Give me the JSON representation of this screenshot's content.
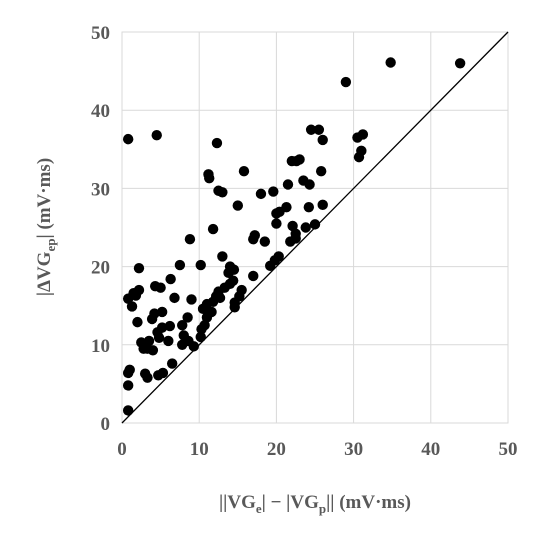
{
  "chart_data": {
    "type": "scatter",
    "title": "",
    "xlabel": {
      "pre": "||VG",
      "sub1": "e",
      "mid": "| − |VG",
      "sub2": "p",
      "post": "|| (mV·ms)"
    },
    "ylabel": {
      "pre": "|ΔVG",
      "sub": "ep",
      "post": "| (mV·ms)"
    },
    "xlim": [
      0,
      50
    ],
    "ylim": [
      0,
      50
    ],
    "x_ticks": [
      "0",
      "10",
      "20",
      "30",
      "40",
      "50"
    ],
    "y_ticks": [
      "0",
      "10",
      "20",
      "30",
      "40",
      "50"
    ],
    "grid": true,
    "reference_line": "y = x",
    "marker_color": "#000000",
    "points": [
      [
        0.8,
        36.3
      ],
      [
        4.5,
        36.8
      ],
      [
        12.3,
        35.8
      ],
      [
        15.8,
        32.2
      ],
      [
        11.2,
        31.8
      ],
      [
        11.3,
        31.3
      ],
      [
        13.0,
        29.5
      ],
      [
        12.5,
        29.7
      ],
      [
        15.0,
        27.8
      ],
      [
        8.8,
        23.5
      ],
      [
        11.8,
        24.8
      ],
      [
        13.0,
        21.3
      ],
      [
        10.2,
        20.2
      ],
      [
        7.5,
        20.2
      ],
      [
        2.2,
        19.8
      ],
      [
        6.3,
        18.4
      ],
      [
        4.3,
        17.5
      ],
      [
        5.0,
        17.3
      ],
      [
        2.2,
        17.0
      ],
      [
        1.5,
        16.6
      ],
      [
        0.8,
        15.9
      ],
      [
        1.8,
        16.3
      ],
      [
        9.0,
        15.8
      ],
      [
        6.8,
        16.0
      ],
      [
        1.3,
        14.9
      ],
      [
        4.2,
        14.0
      ],
      [
        5.2,
        14.2
      ],
      [
        3.9,
        13.3
      ],
      [
        2.0,
        12.9
      ],
      [
        8.5,
        13.5
      ],
      [
        7.8,
        12.5
      ],
      [
        5.2,
        12.2
      ],
      [
        6.2,
        12.4
      ],
      [
        4.6,
        11.6
      ],
      [
        3.5,
        10.5
      ],
      [
        2.5,
        10.3
      ],
      [
        6.0,
        10.5
      ],
      [
        4.8,
        10.9
      ],
      [
        8.0,
        11.2
      ],
      [
        8.6,
        10.5
      ],
      [
        3.3,
        9.5
      ],
      [
        2.8,
        9.5
      ],
      [
        4.0,
        9.3
      ],
      [
        9.3,
        9.8
      ],
      [
        7.8,
        10.0
      ],
      [
        6.5,
        7.6
      ],
      [
        5.3,
        6.4
      ],
      [
        4.7,
        6.1
      ],
      [
        3.3,
        5.8
      ],
      [
        3.0,
        6.3
      ],
      [
        1.0,
        6.8
      ],
      [
        0.8,
        6.4
      ],
      [
        0.8,
        4.8
      ],
      [
        0.8,
        1.6
      ],
      [
        10.2,
        11.0
      ],
      [
        10.3,
        12.0
      ],
      [
        10.7,
        12.5
      ],
      [
        11.0,
        13.5
      ],
      [
        11.6,
        14.2
      ],
      [
        11.0,
        15.2
      ],
      [
        11.8,
        15.5
      ],
      [
        12.2,
        16.2
      ],
      [
        12.5,
        16.8
      ],
      [
        13.3,
        17.3
      ],
      [
        14.0,
        17.8
      ],
      [
        14.4,
        18.2
      ],
      [
        13.8,
        19.2
      ],
      [
        14.5,
        19.6
      ],
      [
        14.0,
        20.0
      ],
      [
        15.2,
        16.2
      ],
      [
        14.6,
        15.4
      ],
      [
        14.6,
        14.8
      ],
      [
        12.7,
        16.0
      ],
      [
        10.5,
        14.6
      ],
      [
        15.5,
        17.0
      ],
      [
        17.0,
        23.5
      ],
      [
        17.2,
        24.0
      ],
      [
        18.5,
        23.2
      ],
      [
        18.0,
        29.3
      ],
      [
        19.6,
        29.6
      ],
      [
        20.0,
        26.8
      ],
      [
        20.4,
        27.0
      ],
      [
        20.0,
        25.5
      ],
      [
        21.3,
        27.6
      ],
      [
        19.8,
        20.8
      ],
      [
        20.3,
        21.3
      ],
      [
        19.2,
        20.1
      ],
      [
        21.5,
        30.5
      ],
      [
        22.0,
        33.5
      ],
      [
        22.6,
        33.5
      ],
      [
        23.0,
        33.7
      ],
      [
        22.1,
        25.2
      ],
      [
        21.8,
        23.2
      ],
      [
        22.5,
        23.6
      ],
      [
        22.5,
        24.2
      ],
      [
        23.5,
        31.0
      ],
      [
        24.3,
        30.5
      ],
      [
        24.2,
        27.6
      ],
      [
        23.8,
        25.0
      ],
      [
        24.5,
        37.5
      ],
      [
        25.5,
        37.5
      ],
      [
        26.0,
        36.2
      ],
      [
        25.8,
        32.2
      ],
      [
        25.0,
        25.4
      ],
      [
        26.0,
        27.9
      ],
      [
        29.0,
        43.6
      ],
      [
        30.5,
        36.5
      ],
      [
        30.7,
        34.0
      ],
      [
        31.0,
        34.8
      ],
      [
        31.2,
        36.9
      ],
      [
        34.8,
        46.1
      ],
      [
        43.8,
        46.0
      ],
      [
        17.0,
        18.8
      ]
    ]
  }
}
